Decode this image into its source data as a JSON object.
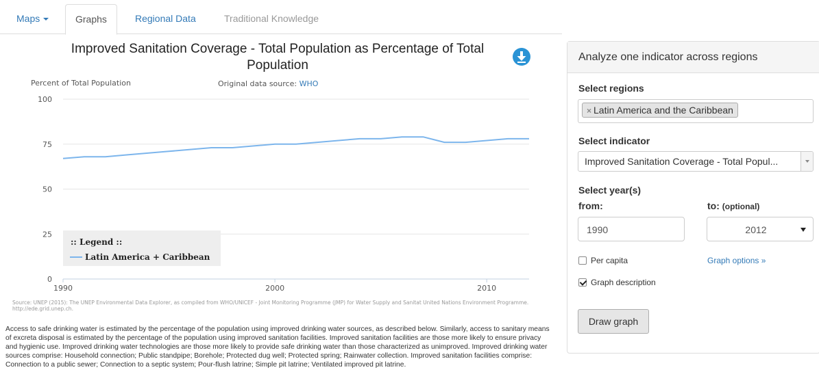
{
  "tabs": [
    {
      "label": "Maps"
    },
    {
      "label": "Graphs"
    },
    {
      "label": "Regional Data"
    },
    {
      "label": "Traditional Knowledge"
    }
  ],
  "chart": {
    "title": "Improved Sanitation Coverage - Total Population as Percentage of Total Population",
    "ylabel": "Percent of Total Population",
    "source_label": "Original data source:",
    "source_link": "WHO",
    "legend_title": ":: Legend ::",
    "source_note": "Source: UNEP (2015): The UNEP Environmental Data Explorer, as compiled from WHO/UNICEF - Joint Monitoring Programme (JMP) for Water Supply and Sanitat United Nations Environment Programme. http://ede.grid.unep.ch.",
    "description": "Access to safe drinking water is estimated by the percentage of the population using improved drinking water sources, as described below. Similarly, access to sanitary means of excreta disposal is estimated by the percentage of the population using improved sanitation facilities. Improved sanitation facilities are those more likely to ensure privacy and hygienic use. Improved drinking water technologies are those more likely to provide safe drinking water than those characterized as unimproved. Improved drinking water sources comprise: Household connection; Public standpipe; Borehole; Protected dug well; Protected spring; Rainwater collection. Improved sanitation facilities comprise: Connection to a public sewer; Connection to a septic system; Pour-flush latrine; Simple pit latrine; Ventilated improved pit latrine."
  },
  "chart_data": {
    "type": "line",
    "x": [
      1990,
      1991,
      1992,
      1993,
      1994,
      1995,
      1996,
      1997,
      1998,
      1999,
      2000,
      2001,
      2002,
      2003,
      2004,
      2005,
      2006,
      2007,
      2008,
      2009,
      2010,
      2011,
      2012
    ],
    "series": [
      {
        "name": "Latin America + Caribbean",
        "color": "#7cb5ec",
        "values": [
          67,
          68,
          68,
          69,
          70,
          71,
          72,
          73,
          73,
          74,
          75,
          75,
          76,
          77,
          78,
          78,
          79,
          79,
          76,
          76,
          77,
          78,
          78
        ]
      }
    ],
    "ylim": [
      0,
      100
    ],
    "yticks": [
      0,
      25,
      50,
      75,
      100
    ],
    "xticks": [
      1990,
      2000,
      2010
    ],
    "xlim": [
      1990,
      2012
    ],
    "grid": true,
    "legend": "bottom-left"
  },
  "panel": {
    "title": "Analyze one indicator across regions",
    "regions_label": "Select regions",
    "region_tag": "Latin America and the Caribbean",
    "indicator_label": "Select indicator",
    "indicator_value": "Improved Sanitation Coverage - Total Popul...",
    "years_label": "Select year(s)",
    "from_label": "from:",
    "to_label": "to:",
    "to_optional": "(optional)",
    "from_value": "1990",
    "to_value": "2012",
    "per_capita": "Per capita",
    "graph_options": "Graph options »",
    "graph_description": "Graph description",
    "draw_button": "Draw graph"
  }
}
